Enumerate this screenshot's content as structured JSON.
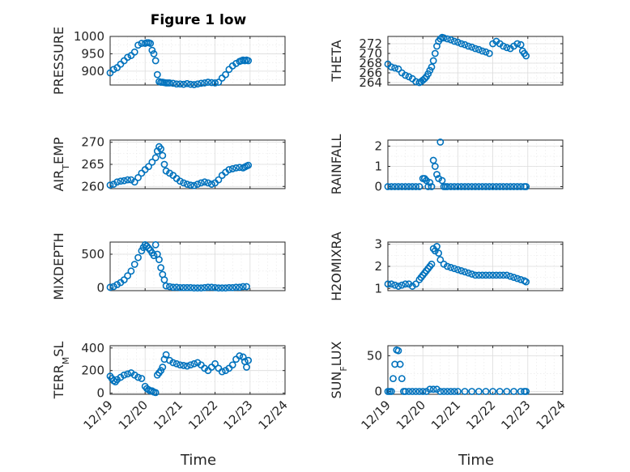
{
  "figure": {
    "title": "Figure 1 low",
    "xlabel": "Time",
    "marker_color": "#0072BD"
  },
  "chart_data": [
    {
      "type": "scatter",
      "ylabel": "PRESSURE",
      "xlim": [
        "12/19",
        "12/24"
      ],
      "ylim": [
        860,
        1000
      ],
      "yticks": [
        900,
        950,
        1000
      ],
      "xticks": [],
      "x": [
        0.0,
        0.1,
        0.2,
        0.3,
        0.4,
        0.5,
        0.6,
        0.7,
        0.8,
        0.9,
        1.0,
        1.05,
        1.1,
        1.15,
        1.2,
        1.25,
        1.3,
        1.35,
        1.4,
        1.45,
        1.5,
        1.55,
        1.6,
        1.65,
        1.7,
        1.8,
        1.9,
        2.0,
        2.1,
        2.2,
        2.3,
        2.4,
        2.5,
        2.6,
        2.7,
        2.8,
        2.9,
        3.0,
        3.1,
        3.2,
        3.3,
        3.4,
        3.5,
        3.6,
        3.7,
        3.75,
        3.8,
        3.85,
        3.9,
        3.95
      ],
      "y": [
        895,
        905,
        910,
        920,
        930,
        940,
        945,
        955,
        975,
        980,
        980,
        982,
        982,
        980,
        960,
        950,
        930,
        890,
        870,
        868,
        868,
        867,
        866,
        866,
        866,
        865,
        863,
        863,
        862,
        864,
        862,
        861,
        863,
        865,
        866,
        868,
        867,
        866,
        868,
        880,
        890,
        905,
        915,
        922,
        928,
        930,
        932,
        930,
        932,
        930
      ]
    },
    {
      "type": "scatter",
      "ylabel": "THETA",
      "xlim": [
        "12/19",
        "12/24"
      ],
      "ylim": [
        263.5,
        273.5
      ],
      "yticks": [
        264,
        266,
        268,
        270,
        272
      ],
      "xticks": [],
      "x": [
        0.0,
        0.1,
        0.2,
        0.3,
        0.4,
        0.5,
        0.6,
        0.7,
        0.8,
        0.9,
        0.95,
        1.0,
        1.05,
        1.1,
        1.15,
        1.2,
        1.25,
        1.3,
        1.35,
        1.4,
        1.45,
        1.5,
        1.55,
        1.6,
        1.7,
        1.8,
        1.9,
        2.0,
        2.1,
        2.2,
        2.3,
        2.4,
        2.5,
        2.6,
        2.7,
        2.8,
        2.9,
        3.0,
        3.1,
        3.2,
        3.3,
        3.4,
        3.5,
        3.6,
        3.7,
        3.8,
        3.85,
        3.9,
        3.95
      ],
      "y": [
        267.8,
        267.2,
        267.0,
        266.8,
        266.0,
        265.5,
        265.2,
        264.8,
        264.2,
        264.0,
        264.2,
        264.5,
        264.8,
        265.2,
        265.8,
        266.5,
        267.2,
        268.5,
        270.0,
        271.5,
        272.5,
        273.0,
        273.3,
        273.2,
        273.0,
        272.8,
        272.5,
        272.3,
        272.0,
        271.8,
        271.5,
        271.3,
        271.0,
        270.8,
        270.5,
        270.3,
        270.0,
        272.0,
        272.5,
        272.0,
        271.5,
        271.2,
        271.0,
        271.5,
        272.0,
        271.8,
        270.5,
        270.0,
        269.5
      ]
    },
    {
      "type": "scatter",
      "ylabel": "AIR_TEMP",
      "xlim": [
        "12/19",
        "12/24"
      ],
      "ylim": [
        259.5,
        270.5
      ],
      "yticks": [
        260,
        265,
        270
      ],
      "xticks": [],
      "x": [
        0.0,
        0.1,
        0.2,
        0.3,
        0.4,
        0.5,
        0.6,
        0.7,
        0.8,
        0.9,
        1.0,
        1.1,
        1.2,
        1.3,
        1.35,
        1.4,
        1.45,
        1.5,
        1.55,
        1.6,
        1.7,
        1.8,
        1.9,
        2.0,
        2.1,
        2.2,
        2.3,
        2.4,
        2.5,
        2.6,
        2.7,
        2.8,
        2.9,
        3.0,
        3.1,
        3.2,
        3.3,
        3.4,
        3.5,
        3.6,
        3.7,
        3.8,
        3.85,
        3.9,
        3.95
      ],
      "y": [
        260.3,
        260.5,
        261.0,
        261.2,
        261.3,
        261.5,
        261.5,
        261.0,
        262.0,
        263.0,
        263.8,
        264.5,
        265.5,
        266.5,
        268.0,
        269.0,
        268.5,
        267.0,
        265.0,
        263.5,
        263.0,
        262.5,
        261.8,
        261.2,
        260.8,
        260.5,
        260.3,
        260.2,
        260.5,
        260.8,
        261.0,
        260.8,
        260.5,
        260.8,
        261.5,
        262.5,
        263.2,
        263.8,
        264.0,
        264.2,
        264.3,
        264.2,
        264.4,
        264.6,
        264.8
      ]
    },
    {
      "type": "scatter",
      "ylabel": "RAINFALL",
      "xlim": [
        "12/19",
        "12/24"
      ],
      "ylim": [
        -0.1,
        2.3
      ],
      "yticks": [
        0,
        1,
        2
      ],
      "xticks": [],
      "x": [
        0.0,
        0.1,
        0.2,
        0.3,
        0.4,
        0.5,
        0.6,
        0.7,
        0.8,
        0.9,
        1.0,
        1.05,
        1.1,
        1.15,
        1.2,
        1.25,
        1.3,
        1.35,
        1.4,
        1.45,
        1.5,
        1.55,
        1.6,
        1.65,
        1.7,
        1.8,
        1.9,
        2.0,
        2.1,
        2.2,
        2.3,
        2.4,
        2.5,
        2.6,
        2.7,
        2.8,
        2.9,
        3.0,
        3.1,
        3.2,
        3.3,
        3.4,
        3.5,
        3.6,
        3.7,
        3.8,
        3.9,
        3.95
      ],
      "y": [
        0,
        0,
        0,
        0,
        0,
        0,
        0,
        0,
        0,
        0,
        0.4,
        0.4,
        0.3,
        0.0,
        0.2,
        0.0,
        1.3,
        1.0,
        0.6,
        0.4,
        2.2,
        0.3,
        0.0,
        0,
        0,
        0,
        0,
        0,
        0,
        0,
        0,
        0,
        0,
        0,
        0,
        0,
        0,
        0,
        0,
        0,
        0,
        0,
        0,
        0,
        0,
        0,
        0,
        0
      ]
    },
    {
      "type": "scatter",
      "ylabel": "MIXDEPTH",
      "xlim": [
        "12/19",
        "12/24"
      ],
      "ylim": [
        -40,
        680
      ],
      "yticks": [
        0,
        500
      ],
      "xticks": [],
      "x": [
        0.0,
        0.1,
        0.2,
        0.3,
        0.4,
        0.5,
        0.6,
        0.7,
        0.8,
        0.9,
        0.95,
        1.0,
        1.05,
        1.1,
        1.15,
        1.2,
        1.25,
        1.3,
        1.35,
        1.4,
        1.45,
        1.5,
        1.55,
        1.6,
        1.7,
        1.8,
        1.9,
        2.0,
        2.1,
        2.2,
        2.3,
        2.4,
        2.5,
        2.6,
        2.7,
        2.8,
        2.9,
        3.0,
        3.1,
        3.2,
        3.3,
        3.4,
        3.5,
        3.6,
        3.7,
        3.8,
        3.9
      ],
      "y": [
        10,
        20,
        50,
        80,
        120,
        180,
        250,
        350,
        450,
        550,
        600,
        640,
        620,
        590,
        560,
        520,
        480,
        640,
        500,
        420,
        300,
        200,
        120,
        30,
        20,
        10,
        10,
        5,
        5,
        5,
        5,
        0,
        0,
        0,
        5,
        10,
        10,
        5,
        0,
        0,
        0,
        5,
        5,
        10,
        10,
        20,
        20
      ]
    },
    {
      "type": "scatter",
      "ylabel": "H2OMIXRA",
      "xlim": [
        "12/19",
        "12/24"
      ],
      "ylim": [
        0.9,
        3.1
      ],
      "yticks": [
        1,
        2,
        3
      ],
      "xticks": [],
      "x": [
        0.0,
        0.1,
        0.2,
        0.3,
        0.4,
        0.5,
        0.6,
        0.7,
        0.8,
        0.9,
        0.95,
        1.0,
        1.05,
        1.1,
        1.15,
        1.2,
        1.25,
        1.3,
        1.35,
        1.4,
        1.45,
        1.5,
        1.6,
        1.7,
        1.8,
        1.9,
        2.0,
        2.1,
        2.2,
        2.3,
        2.4,
        2.5,
        2.6,
        2.7,
        2.8,
        2.9,
        3.0,
        3.1,
        3.2,
        3.3,
        3.4,
        3.5,
        3.6,
        3.7,
        3.8,
        3.9,
        3.95
      ],
      "y": [
        1.2,
        1.2,
        1.15,
        1.1,
        1.15,
        1.2,
        1.2,
        1.1,
        1.2,
        1.4,
        1.5,
        1.6,
        1.7,
        1.8,
        1.9,
        2.0,
        2.1,
        2.8,
        2.7,
        2.9,
        2.6,
        2.3,
        2.1,
        2.0,
        1.95,
        1.9,
        1.85,
        1.8,
        1.75,
        1.7,
        1.65,
        1.6,
        1.6,
        1.6,
        1.6,
        1.6,
        1.6,
        1.6,
        1.6,
        1.6,
        1.6,
        1.55,
        1.5,
        1.45,
        1.4,
        1.35,
        1.3
      ]
    },
    {
      "type": "scatter",
      "ylabel": "TERR_MSL",
      "xlim": [
        "12/19",
        "12/24"
      ],
      "ylim": [
        -10,
        420
      ],
      "yticks": [
        0,
        200,
        400
      ],
      "xticks": [
        "12/19",
        "12/20",
        "12/21",
        "12/22",
        "12/23",
        "12/24"
      ],
      "x": [
        0.0,
        0.05,
        0.1,
        0.15,
        0.2,
        0.3,
        0.4,
        0.5,
        0.6,
        0.7,
        0.8,
        0.9,
        1.0,
        1.05,
        1.1,
        1.15,
        1.2,
        1.25,
        1.3,
        1.35,
        1.4,
        1.45,
        1.5,
        1.55,
        1.6,
        1.7,
        1.8,
        1.9,
        2.0,
        2.1,
        2.2,
        2.3,
        2.4,
        2.5,
        2.6,
        2.7,
        2.8,
        2.9,
        3.0,
        3.1,
        3.2,
        3.3,
        3.4,
        3.5,
        3.6,
        3.7,
        3.8,
        3.85,
        3.9,
        3.95
      ],
      "y": [
        150,
        130,
        110,
        100,
        120,
        140,
        160,
        170,
        180,
        160,
        140,
        130,
        60,
        40,
        30,
        20,
        20,
        10,
        5,
        160,
        180,
        200,
        230,
        300,
        340,
        290,
        270,
        260,
        250,
        245,
        240,
        250,
        260,
        270,
        250,
        220,
        200,
        230,
        260,
        220,
        190,
        200,
        220,
        250,
        300,
        330,
        320,
        280,
        230,
        290
      ]
    },
    {
      "type": "scatter",
      "ylabel": "SUN_FLUX",
      "xlim": [
        "12/19",
        "12/24"
      ],
      "ylim": [
        -4,
        64
      ],
      "yticks": [
        0,
        50
      ],
      "xticks": [
        "12/19",
        "12/20",
        "12/21",
        "12/22",
        "12/23",
        "12/24"
      ],
      "x": [
        0.0,
        0.05,
        0.1,
        0.15,
        0.2,
        0.25,
        0.3,
        0.35,
        0.4,
        0.45,
        0.5,
        0.6,
        0.7,
        0.8,
        0.9,
        1.0,
        1.1,
        1.2,
        1.3,
        1.4,
        1.5,
        1.6,
        1.7,
        1.8,
        1.9,
        2.0,
        2.2,
        2.4,
        2.6,
        2.8,
        3.0,
        3.2,
        3.4,
        3.6,
        3.8,
        3.9,
        3.95
      ],
      "y": [
        0,
        0,
        0,
        18,
        38,
        58,
        57,
        38,
        18,
        0,
        0,
        0,
        0,
        0,
        0,
        0,
        0,
        3,
        3,
        3,
        0,
        0,
        0,
        0,
        0,
        0,
        0,
        0,
        0,
        0,
        0,
        0,
        0,
        0,
        0,
        0,
        0
      ]
    }
  ]
}
